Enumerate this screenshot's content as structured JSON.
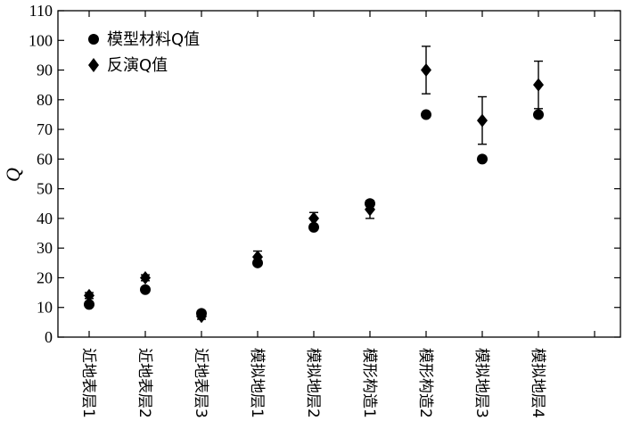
{
  "chart_data": {
    "type": "scatter",
    "title": "",
    "xlabel": "",
    "ylabel": "Q",
    "ylim": [
      0,
      110
    ],
    "yticks": [
      0,
      10,
      20,
      30,
      40,
      50,
      60,
      70,
      80,
      90,
      100,
      110
    ],
    "categories": [
      "近地表层1",
      "近地表层2",
      "近地表层3",
      "模拟地层1",
      "模拟地层2",
      "模形构造1",
      "模形构造2",
      "模拟地层3",
      "模拟地层4"
    ],
    "grid": false,
    "legend_position": "top-left",
    "series": [
      {
        "name": "模型材料Q值",
        "marker": "circle",
        "values": [
          11,
          16,
          8,
          25,
          37,
          45,
          75,
          60,
          75
        ]
      },
      {
        "name": "反演Q值",
        "marker": "diamond",
        "values": [
          14,
          20,
          7,
          27,
          40,
          43,
          90,
          73,
          85
        ],
        "error": [
          1,
          1,
          1,
          2,
          2,
          3,
          8,
          8,
          8
        ]
      }
    ]
  }
}
